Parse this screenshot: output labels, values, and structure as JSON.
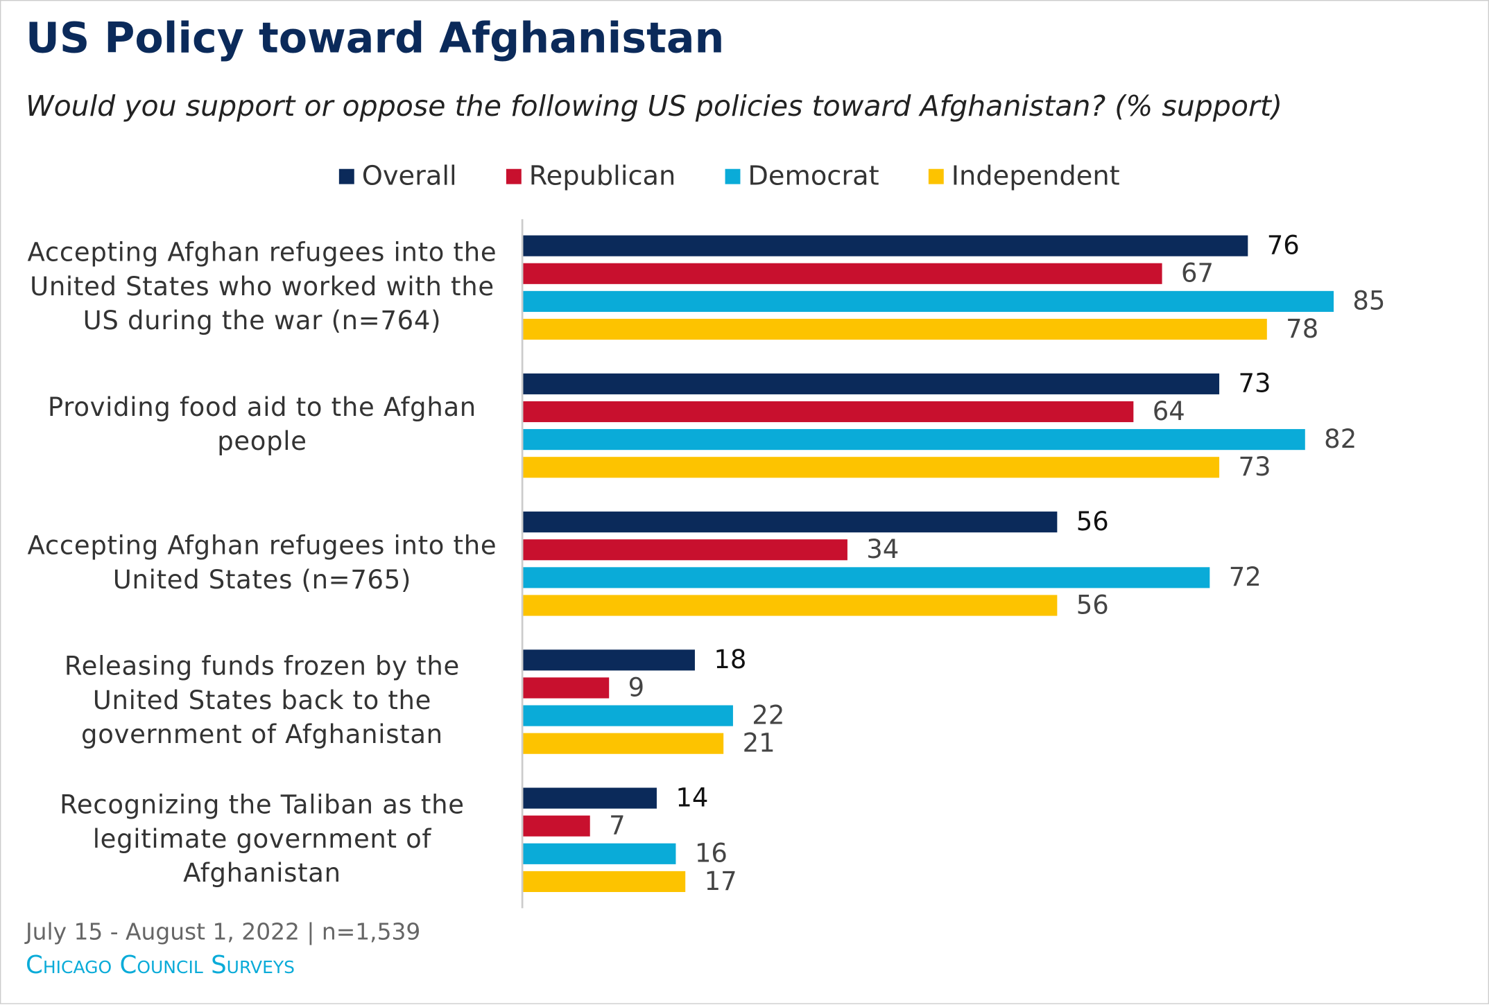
{
  "chart_data": {
    "type": "barh",
    "title": "US Policy toward Afghanistan",
    "subtitle": "Would you support or oppose the following US policies toward Afghanistan? (% support)",
    "categories": [
      "Accepting Afghan refugees into the United States who worked with the US during the war (n=764)",
      "Providing food aid to the Afghan people",
      "Accepting Afghan refugees into the United States (n=765)",
      "Releasing funds frozen by the United States back to the government of Afghanistan",
      "Recognizing the Taliban as the legitimate government of Afghanistan"
    ],
    "series": [
      {
        "name": "Overall",
        "color": "#0b2a5a",
        "values": [
          76,
          73,
          56,
          18,
          14
        ]
      },
      {
        "name": "Republican",
        "color": "#c8102e",
        "values": [
          67,
          64,
          34,
          9,
          7
        ]
      },
      {
        "name": "Democrat",
        "color": "#0aabd8",
        "values": [
          85,
          82,
          72,
          22,
          16
        ]
      },
      {
        "name": "Independent",
        "color": "#fdc300",
        "values": [
          78,
          73,
          56,
          21,
          17
        ]
      }
    ],
    "xlim": [
      0,
      100
    ],
    "note": "July 15 - August 1, 2022 | n=1,539",
    "source": "Chicago Council Surveys"
  }
}
